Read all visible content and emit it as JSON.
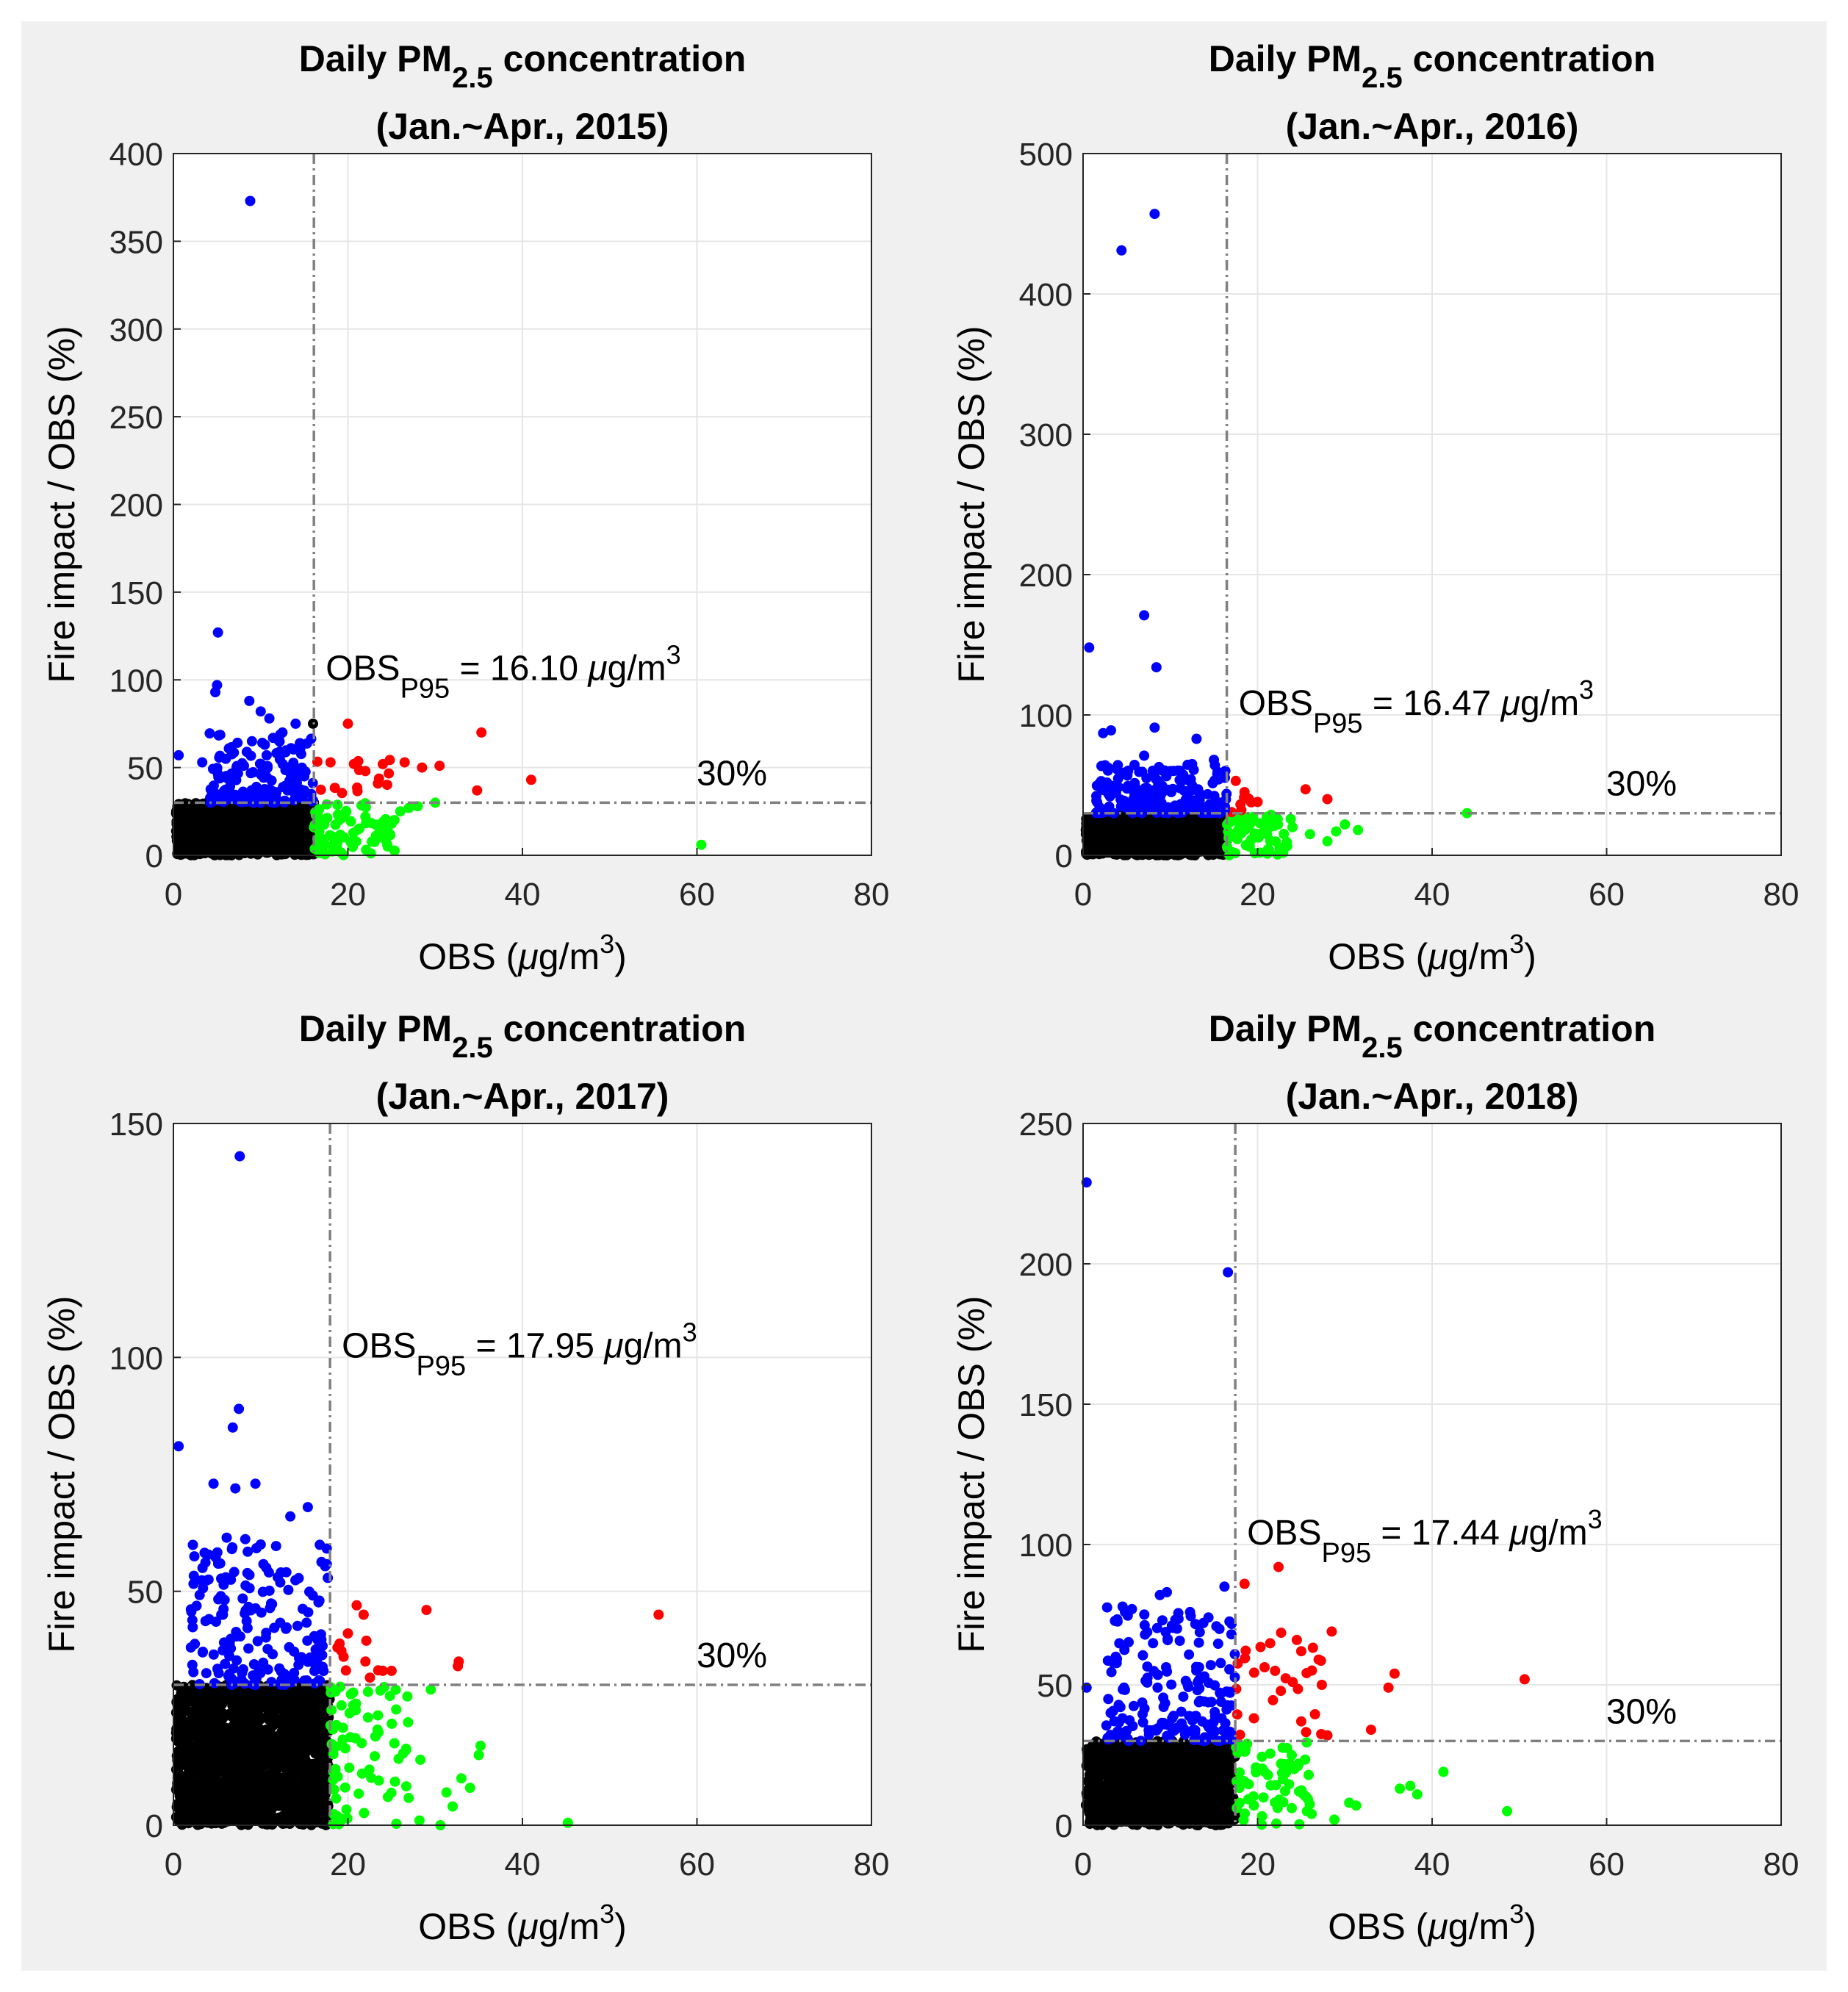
{
  "chart_data": [
    {
      "type": "scatter",
      "title": "Daily PM2.5 concentration",
      "title_main": "Daily PM",
      "title_sub": "2.5",
      "title_tail": " concentration",
      "subtitle": "(Jan.~Apr., 2015)",
      "xlabel": "OBS (μg/m3)",
      "ylabel": "Fire impact / OBS (%)",
      "xlim": [
        0,
        80
      ],
      "ylim": [
        0,
        400
      ],
      "xticks": [
        0,
        20,
        40,
        60,
        80
      ],
      "yticks": [
        0,
        50,
        100,
        150,
        200,
        250,
        300,
        350,
        400
      ],
      "grid": true,
      "thresholds": {
        "obs_p95": 16.1,
        "ratio_pct": 30
      },
      "annotations": {
        "obs_p95_label": "= 16.10",
        "obs_p95_unit": "μg/m",
        "pct_label": "30%",
        "pct_x": 64,
        "p95_text_y": 100
      },
      "series": [
        {
          "color": "#0000ff",
          "points": [
            [
              8.8,
              373
            ],
            [
              5.1,
              127
            ],
            [
              5.0,
              97
            ],
            [
              4.8,
              93
            ],
            [
              0.6,
              57
            ],
            [
              3.3,
              53
            ],
            [
              8.7,
              88
            ],
            [
              10,
              82
            ],
            [
              11,
              78
            ],
            [
              14,
              75
            ],
            [
              12.5,
              70
            ],
            [
              9,
              65
            ],
            [
              6,
              55
            ],
            [
              13,
              50
            ],
            [
              15,
              45
            ]
          ],
          "cluster": {
            "n": 150,
            "x": [
              4,
              16.1
            ],
            "y": [
              30,
              70
            ]
          }
        },
        {
          "color": "#ff0000",
          "points": [
            [
              20,
              75
            ],
            [
              35.3,
              70
            ],
            [
              26.5,
              53
            ],
            [
              28.5,
              50
            ],
            [
              30.5,
              51
            ],
            [
              34.8,
              37
            ],
            [
              41,
              43
            ],
            [
              18,
              53
            ],
            [
              22,
              48
            ],
            [
              24,
              52
            ]
          ],
          "cluster": {
            "n": 14,
            "x": [
              16.1,
              25
            ],
            "y": [
              30,
              55
            ]
          }
        },
        {
          "color": "#00ff00",
          "points": [
            [
              60.5,
              6
            ],
            [
              28,
              28
            ],
            [
              27,
              27
            ],
            [
              30,
              30
            ],
            [
              25,
              18
            ],
            [
              24,
              10
            ],
            [
              26,
              25
            ],
            [
              22,
              22
            ]
          ],
          "cluster": {
            "n": 70,
            "x": [
              16.1,
              26
            ],
            "y": [
              0,
              30
            ]
          }
        },
        {
          "color": "#000000",
          "points": [
            [
              16,
              75
            ]
          ],
          "cluster": {
            "n": 1000,
            "x": [
              0.3,
              16.1
            ],
            "y": [
              0,
              30
            ]
          }
        }
      ]
    },
    {
      "type": "scatter",
      "title": "Daily PM2.5 concentration",
      "title_main": "Daily PM",
      "title_sub": "2.5",
      "title_tail": " concentration",
      "subtitle": "(Jan.~Apr., 2016)",
      "xlabel": "OBS (μg/m3)",
      "ylabel": "Fire impact / OBS (%)",
      "xlim": [
        0,
        80
      ],
      "ylim": [
        0,
        500
      ],
      "xticks": [
        0,
        20,
        40,
        60,
        80
      ],
      "yticks": [
        0,
        100,
        200,
        300,
        400,
        500
      ],
      "grid": true,
      "thresholds": {
        "obs_p95": 16.47,
        "ratio_pct": 30
      },
      "annotations": {
        "obs_p95_label": "= 16.47",
        "obs_p95_unit": "μg/m",
        "pct_label": "30%",
        "pct_x": 64,
        "p95_text_y": 100
      },
      "series": [
        {
          "color": "#0000ff",
          "points": [
            [
              8.2,
              457
            ],
            [
              4.4,
              431
            ],
            [
              7,
              171
            ],
            [
              0.7,
              148
            ],
            [
              8.4,
              134
            ],
            [
              2.3,
              87
            ],
            [
              3.2,
              89
            ],
            [
              8.2,
              91
            ],
            [
              13,
              83
            ],
            [
              7,
              71
            ],
            [
              15,
              68
            ],
            [
              10,
              60
            ]
          ],
          "cluster": {
            "n": 180,
            "x": [
              1.5,
              16.47
            ],
            "y": [
              30,
              65
            ]
          }
        },
        {
          "color": "#ff0000",
          "points": [
            [
              17.5,
              53
            ],
            [
              25.5,
              47
            ],
            [
              28,
              40
            ],
            [
              18.5,
              45
            ],
            [
              19,
              40
            ],
            [
              20,
              38
            ]
          ],
          "cluster": {
            "n": 6,
            "x": [
              16.5,
              20
            ],
            "y": [
              30,
              45
            ]
          }
        },
        {
          "color": "#00ff00",
          "points": [
            [
              44,
              30
            ],
            [
              31.5,
              18
            ],
            [
              30,
              22
            ],
            [
              28,
              10
            ],
            [
              26,
              15
            ],
            [
              24,
              20
            ],
            [
              29,
              17
            ]
          ],
          "cluster": {
            "n": 70,
            "x": [
              16.5,
              24
            ],
            "y": [
              0,
              30
            ]
          }
        },
        {
          "color": "#000000",
          "points": [],
          "cluster": {
            "n": 1000,
            "x": [
              0.3,
              16.47
            ],
            "y": [
              0,
              30
            ]
          }
        }
      ]
    },
    {
      "type": "scatter",
      "title": "Daily PM2.5 concentration",
      "title_main": "Daily PM",
      "title_sub": "2.5",
      "title_tail": " concentration",
      "subtitle": "(Jan.~Apr., 2017)",
      "xlabel": "OBS (μg/m3)",
      "ylabel": "Fire impact / OBS (%)",
      "xlim": [
        0,
        80
      ],
      "ylim": [
        0,
        150
      ],
      "xticks": [
        0,
        20,
        40,
        60,
        80
      ],
      "yticks": [
        0,
        50,
        100,
        150
      ],
      "grid": true,
      "thresholds": {
        "obs_p95": 17.95,
        "ratio_pct": 30
      },
      "annotations": {
        "obs_p95_label": "= 17.95",
        "obs_p95_unit": "μg/m",
        "pct_label": "30%",
        "pct_x": 64,
        "p95_text_y": 100
      },
      "series": [
        {
          "color": "#0000ff",
          "points": [
            [
              7.6,
              143
            ],
            [
              0.6,
              81
            ],
            [
              7.5,
              89
            ],
            [
              6.8,
              85
            ],
            [
              4.6,
              73
            ],
            [
              9.4,
              73
            ],
            [
              7.1,
              72
            ],
            [
              15.4,
              68
            ],
            [
              13.4,
              66
            ],
            [
              2,
              38
            ],
            [
              6,
              53
            ],
            [
              10,
              60
            ]
          ],
          "cluster": {
            "n": 180,
            "x": [
              2,
              17.95
            ],
            "y": [
              30,
              62
            ]
          }
        },
        {
          "color": "#ff0000",
          "points": [
            [
              55.6,
              45
            ],
            [
              29,
              46
            ],
            [
              21,
              47
            ],
            [
              21.8,
              45
            ],
            [
              32.7,
              35
            ],
            [
              32.6,
              34
            ],
            [
              18.8,
              38
            ],
            [
              20,
              41
            ],
            [
              22,
              35
            ],
            [
              24,
              33
            ],
            [
              25,
              33
            ],
            [
              19.5,
              36
            ]
          ],
          "cluster": {
            "n": 6,
            "x": [
              18,
              24
            ],
            "y": [
              30,
              40
            ]
          }
        },
        {
          "color": "#00ff00",
          "points": [
            [
              45.2,
              0.5
            ],
            [
              35.2,
              17
            ],
            [
              35,
              15
            ],
            [
              34,
              8
            ],
            [
              33,
              10
            ],
            [
              32,
              4
            ],
            [
              31.3,
              7
            ],
            [
              30.6,
              0
            ],
            [
              28.2,
              1
            ],
            [
              28.3,
              14
            ],
            [
              29.5,
              29
            ],
            [
              26.9,
              22
            ]
          ],
          "cluster": {
            "n": 70,
            "x": [
              18,
              27
            ],
            "y": [
              0,
              30
            ]
          }
        },
        {
          "color": "#000000",
          "points": [],
          "cluster": {
            "n": 1500,
            "x": [
              0.3,
              17.95
            ],
            "y": [
              0,
              30
            ]
          }
        }
      ]
    },
    {
      "type": "scatter",
      "title": "Daily PM2.5 concentration",
      "title_main": "Daily PM",
      "title_sub": "2.5",
      "title_tail": " concentration",
      "subtitle": "(Jan.~Apr., 2018)",
      "xlabel": "OBS (μg/m3)",
      "ylabel": "Fire impact / OBS (%)",
      "xlim": [
        0,
        80
      ],
      "ylim": [
        0,
        250
      ],
      "xticks": [
        0,
        20,
        40,
        60,
        80
      ],
      "yticks": [
        0,
        50,
        100,
        150,
        200,
        250
      ],
      "grid": true,
      "thresholds": {
        "obs_p95": 17.44,
        "ratio_pct": 30
      },
      "annotations": {
        "obs_p95_label": "= 17.44",
        "obs_p95_unit": "μg/m",
        "pct_label": "30%",
        "pct_x": 64,
        "p95_text_y": 100
      },
      "series": [
        {
          "color": "#0000ff",
          "points": [
            [
              0.4,
              229
            ],
            [
              16.6,
              197
            ],
            [
              0.4,
              49
            ],
            [
              8.8,
              82
            ],
            [
              9.6,
              83
            ],
            [
              16.2,
              85
            ],
            [
              4.8,
              76
            ],
            [
              5.6,
              77
            ],
            [
              17,
              68
            ]
          ],
          "cluster": {
            "n": 180,
            "x": [
              2.5,
              17.44
            ],
            "y": [
              30,
              78
            ]
          }
        },
        {
          "color": "#ff0000",
          "points": [
            [
              18.5,
              86
            ],
            [
              22.4,
              92
            ],
            [
              50.6,
              52
            ],
            [
              35.7,
              54
            ],
            [
              35,
              49
            ],
            [
              33,
              34
            ],
            [
              28.5,
              69
            ],
            [
              24.5,
              66
            ],
            [
              25,
              62
            ],
            [
              27,
              59
            ],
            [
              22,
              55
            ],
            [
              28,
              32
            ],
            [
              25,
              37
            ]
          ],
          "cluster": {
            "n": 25,
            "x": [
              17.5,
              28
            ],
            "y": [
              30,
              70
            ]
          }
        },
        {
          "color": "#00ff00",
          "points": [
            [
              48.6,
              5
            ],
            [
              41.3,
              19
            ],
            [
              37.5,
              14
            ],
            [
              38.3,
              11
            ],
            [
              36.3,
              13
            ],
            [
              30.5,
              8
            ],
            [
              31.3,
              7
            ],
            [
              28.8,
              2
            ],
            [
              26.2,
              4
            ],
            [
              25.6,
              10
            ]
          ],
          "cluster": {
            "n": 70,
            "x": [
              17.5,
              26
            ],
            "y": [
              0,
              30
            ]
          }
        },
        {
          "color": "#000000",
          "points": [],
          "cluster": {
            "n": 1200,
            "x": [
              0.3,
              17.44
            ],
            "y": [
              0,
              30
            ]
          }
        }
      ]
    }
  ]
}
